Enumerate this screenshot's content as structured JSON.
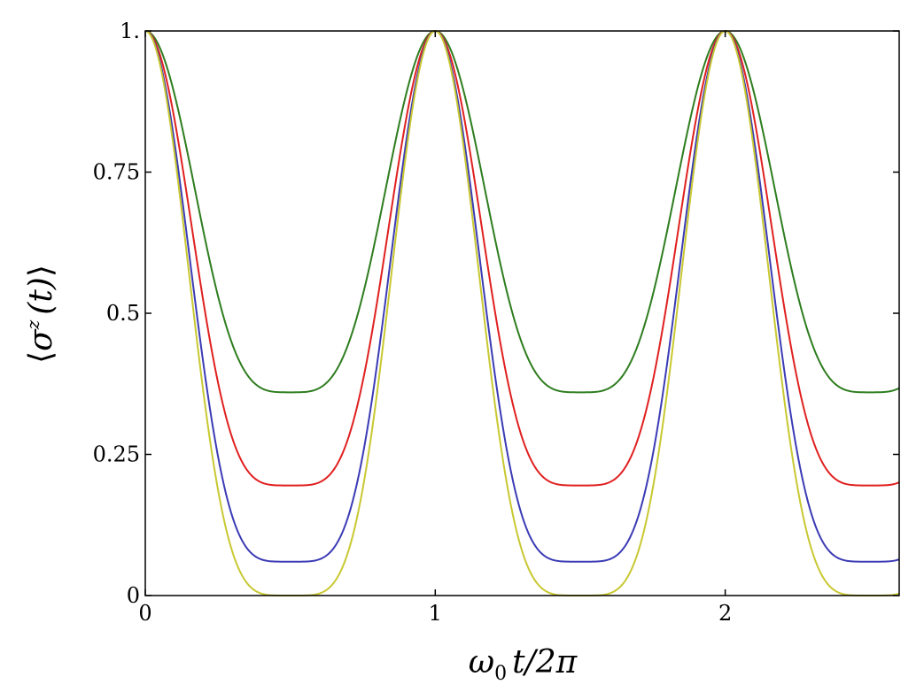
{
  "chart_data": {
    "type": "line",
    "xlabel_parts": {
      "main": "ω",
      "sub": "0",
      "rest": "t/2π"
    },
    "ylabel_parts": {
      "open": "⟨",
      "sigma": "σ",
      "sup": "z",
      "paren": "(t)",
      "close": "⟩"
    },
    "xlim": [
      0,
      2.6
    ],
    "ylim": [
      0,
      1
    ],
    "xticks": [
      0,
      1,
      2
    ],
    "xtick_labels": [
      "0",
      "1",
      "2"
    ],
    "yticks": [
      0,
      0.25,
      0.5,
      0.75,
      1
    ],
    "ytick_labels": [
      "0",
      "0.25",
      "0.5",
      "0.75",
      "1."
    ],
    "grid": false,
    "period": 1,
    "series": [
      {
        "color": "#2e7d1f",
        "min_value": 0.36,
        "max_value": 1.0
      },
      {
        "color": "#e02020",
        "min_value": 0.195,
        "max_value": 1.0
      },
      {
        "color": "#3b3bb5",
        "min_value": 0.06,
        "max_value": 1.0
      },
      {
        "color": "#c8c832",
        "min_value": 0.0,
        "max_value": 1.0
      }
    ]
  }
}
